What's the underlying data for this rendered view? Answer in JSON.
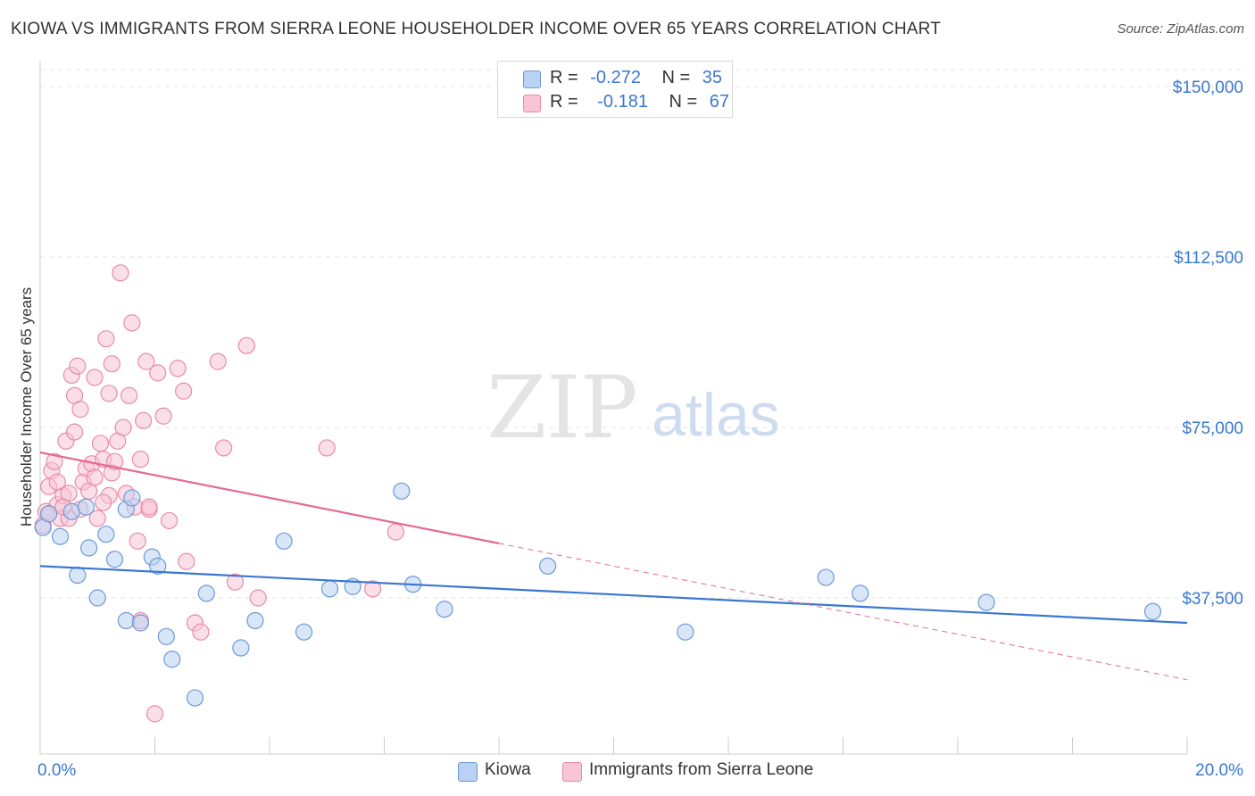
{
  "title": "KIOWA VS IMMIGRANTS FROM SIERRA LEONE HOUSEHOLDER INCOME OVER 65 YEARS CORRELATION CHART",
  "source": "Source: ZipAtlas.com",
  "watermark": {
    "zip": "ZIP",
    "atlas": "atlas"
  },
  "legend": {
    "kiowa": {
      "r_label": "R =",
      "r_value": "-0.272",
      "n_label": "N =",
      "n_value": "35"
    },
    "sierra": {
      "r_label": "R =",
      "r_value": "-0.181",
      "n_label": "N =",
      "n_value": "67"
    }
  },
  "bottom_legend": {
    "kiowa": "Kiowa",
    "sierra": "Immigrants from Sierra Leone"
  },
  "colors": {
    "kiowa_fill": "#b9d1f3",
    "kiowa_stroke": "#6b9ad8",
    "kiowa_line": "#3a78d0",
    "sierra_fill": "#f8c5d5",
    "sierra_stroke": "#e98aa8",
    "sierra_line": "#e46a93",
    "axis_text": "#3a78d0",
    "grid": "#e3e3e3"
  },
  "chart_data": {
    "type": "scatter",
    "title": "KIOWA VS IMMIGRANTS FROM SIERRA LEONE HOUSEHOLDER INCOME OVER 65 YEARS CORRELATION CHART",
    "xlabel": "",
    "ylabel": "Householder Income Over 65 years",
    "xlim": [
      0,
      20
    ],
    "ylim": [
      0,
      150000
    ],
    "x_tick_labels": [
      "0.0%",
      "20.0%"
    ],
    "y_ticks": [
      37500,
      75000,
      112500,
      150000
    ],
    "y_tick_labels": [
      "$37,500",
      "$75,000",
      "$112,500",
      "$150,000"
    ],
    "grid": true,
    "legend_position": "top-center",
    "series": [
      {
        "name": "Kiowa",
        "R": -0.272,
        "N": 35,
        "points": [
          [
            0.05,
            53000
          ],
          [
            0.15,
            56000
          ],
          [
            0.35,
            51000
          ],
          [
            0.55,
            56500
          ],
          [
            0.8,
            57500
          ],
          [
            0.85,
            48500
          ],
          [
            0.65,
            42500
          ],
          [
            1.15,
            51500
          ],
          [
            1.3,
            46000
          ],
          [
            1.5,
            57000
          ],
          [
            1.6,
            59500
          ],
          [
            1.0,
            37500
          ],
          [
            1.5,
            32500
          ],
          [
            1.75,
            32000
          ],
          [
            1.95,
            46500
          ],
          [
            2.05,
            44500
          ],
          [
            2.2,
            29000
          ],
          [
            2.3,
            24000
          ],
          [
            2.7,
            15500
          ],
          [
            2.9,
            38500
          ],
          [
            3.5,
            26500
          ],
          [
            3.75,
            32500
          ],
          [
            4.25,
            50000
          ],
          [
            4.6,
            30000
          ],
          [
            5.05,
            39500
          ],
          [
            5.45,
            40000
          ],
          [
            6.3,
            61000
          ],
          [
            6.5,
            40500
          ],
          [
            7.05,
            35000
          ],
          [
            8.85,
            44500
          ],
          [
            11.25,
            30000
          ],
          [
            13.7,
            42000
          ],
          [
            14.3,
            38500
          ],
          [
            16.5,
            36500
          ],
          [
            19.4,
            34500
          ]
        ],
        "trend": {
          "x0": 0,
          "y0": 44500,
          "x1": 20,
          "y1": 32000
        }
      },
      {
        "name": "Immigrants from Sierra Leone",
        "R": -0.181,
        "N": 67,
        "points": [
          [
            0.05,
            53500
          ],
          [
            0.1,
            56500
          ],
          [
            0.15,
            62000
          ],
          [
            0.2,
            65500
          ],
          [
            0.25,
            67500
          ],
          [
            0.3,
            58000
          ],
          [
            0.35,
            55000
          ],
          [
            0.4,
            60000
          ],
          [
            0.45,
            72000
          ],
          [
            0.5,
            60500
          ],
          [
            0.55,
            86500
          ],
          [
            0.6,
            74000
          ],
          [
            0.6,
            82000
          ],
          [
            0.65,
            88500
          ],
          [
            0.7,
            79000
          ],
          [
            0.75,
            63000
          ],
          [
            0.8,
            66000
          ],
          [
            0.85,
            61000
          ],
          [
            0.9,
            67000
          ],
          [
            0.95,
            86000
          ],
          [
            1.0,
            55000
          ],
          [
            1.05,
            71500
          ],
          [
            1.1,
            68000
          ],
          [
            1.15,
            94500
          ],
          [
            1.2,
            60000
          ],
          [
            1.2,
            82500
          ],
          [
            1.25,
            89000
          ],
          [
            1.25,
            65000
          ],
          [
            1.3,
            67500
          ],
          [
            1.35,
            72000
          ],
          [
            1.4,
            109000
          ],
          [
            1.45,
            75000
          ],
          [
            1.5,
            60500
          ],
          [
            1.55,
            82000
          ],
          [
            1.6,
            98000
          ],
          [
            1.65,
            57500
          ],
          [
            1.7,
            50000
          ],
          [
            1.75,
            68000
          ],
          [
            1.8,
            76500
          ],
          [
            1.85,
            89500
          ],
          [
            1.9,
            57000
          ],
          [
            2.05,
            87000
          ],
          [
            2.15,
            77500
          ],
          [
            2.25,
            54500
          ],
          [
            2.4,
            88000
          ],
          [
            2.5,
            83000
          ],
          [
            2.55,
            45500
          ],
          [
            2.7,
            32000
          ],
          [
            2.8,
            30000
          ],
          [
            3.1,
            89500
          ],
          [
            3.2,
            70500
          ],
          [
            3.4,
            41000
          ],
          [
            3.6,
            93000
          ],
          [
            3.8,
            37500
          ],
          [
            5.0,
            70500
          ],
          [
            6.2,
            52000
          ],
          [
            5.8,
            39500
          ],
          [
            0.3,
            63000
          ],
          [
            0.5,
            55000
          ],
          [
            1.9,
            57500
          ],
          [
            2.0,
            12000
          ],
          [
            1.75,
            32500
          ],
          [
            0.4,
            57500
          ],
          [
            0.15,
            56000
          ],
          [
            0.7,
            57000
          ],
          [
            0.95,
            64000
          ],
          [
            1.1,
            58500
          ]
        ],
        "trend": {
          "x0": 0,
          "y0": 69500,
          "x1": 8,
          "y1": 49500
        },
        "trend_dashed": {
          "x0": 8,
          "y0": 49500,
          "x1": 20,
          "y1": 19500
        }
      }
    ]
  }
}
